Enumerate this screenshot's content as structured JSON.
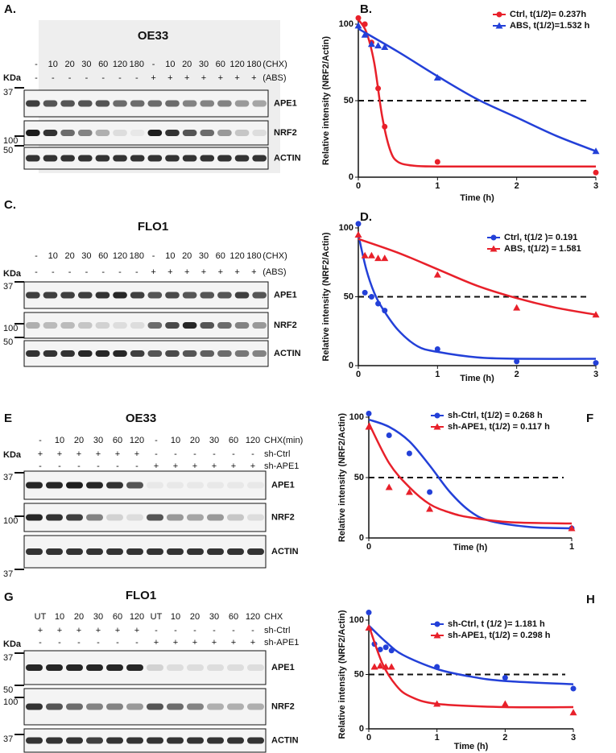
{
  "blots": [
    {
      "letter": "A.",
      "title": "OE33",
      "lane_rows": [
        {
          "cells": [
            "-",
            "10",
            "20",
            "30",
            "60",
            "120",
            "180",
            "-",
            "10",
            "20",
            "30",
            "60",
            "120",
            "180"
          ],
          "label": "(CHX)"
        },
        {
          "cells": [
            "-",
            "-",
            "-",
            "-",
            "-",
            "-",
            "-",
            "+",
            "+",
            "+",
            "+",
            "+",
            "+",
            "+"
          ],
          "label": "(ABS)"
        }
      ],
      "kda": "KDa",
      "strips": [
        "APE1",
        "NRF2",
        "ACTIN"
      ],
      "markers": [
        "37",
        "100",
        "50"
      ]
    },
    {
      "letter": "C.",
      "title": "FLO1",
      "lane_rows": [
        {
          "cells": [
            "-",
            "10",
            "20",
            "30",
            "60",
            "120",
            "180",
            "-",
            "10",
            "20",
            "30",
            "60",
            "120",
            "180"
          ],
          "label": "(CHX)"
        },
        {
          "cells": [
            "-",
            "-",
            "-",
            "-",
            "-",
            "-",
            "-",
            "+",
            "+",
            "+",
            "+",
            "+",
            "+",
            "+"
          ],
          "label": "(ABS)"
        }
      ],
      "kda": "KDa",
      "strips": [
        "APE1",
        "NRF2",
        "ACTIN"
      ],
      "markers": [
        "37",
        "100",
        "50"
      ]
    },
    {
      "letter": "E",
      "title": "OE33",
      "lane_rows": [
        {
          "cells": [
            "-",
            "10",
            "20",
            "30",
            "60",
            "120",
            "-",
            "10",
            "20",
            "30",
            "60",
            "120"
          ],
          "label": "CHX(min)"
        },
        {
          "cells": [
            "+",
            "+",
            "+",
            "+",
            "+",
            "+",
            "-",
            "-",
            "-",
            "-",
            "-",
            "-"
          ],
          "label": "sh-Ctrl"
        },
        {
          "cells": [
            "-",
            "-",
            "-",
            "-",
            "-",
            "-",
            "+",
            "+",
            "+",
            "+",
            "+",
            "+"
          ],
          "label": "sh-APE1"
        }
      ],
      "kda": "KDa",
      "strips": [
        "APE1",
        "NRF2",
        "ACTIN"
      ],
      "markers": [
        "37",
        "100",
        "37"
      ]
    },
    {
      "letter": "G",
      "title": "FLO1",
      "lane_rows": [
        {
          "cells": [
            "UT",
            "10",
            "20",
            "30",
            "60",
            "120",
            "UT",
            "10",
            "20",
            "30",
            "60",
            "120"
          ],
          "label": "CHX"
        },
        {
          "cells": [
            "+",
            "+",
            "+",
            "+",
            "+",
            "+",
            "-",
            "-",
            "-",
            "-",
            "-",
            "-"
          ],
          "label": "sh-Ctrl"
        },
        {
          "cells": [
            "-",
            "-",
            "-",
            "-",
            "-",
            "-",
            "+",
            "+",
            "+",
            "+",
            "+",
            "+"
          ],
          "label": "sh-APE1"
        }
      ],
      "kda": "KDa",
      "strips": [
        "APE1",
        "NRF2",
        "ACTIN"
      ],
      "markers": [
        "37",
        "50",
        "100",
        "37"
      ]
    }
  ],
  "chart_data": [
    {
      "letter": "B.",
      "type": "line",
      "y_label": "Relative intensity (NRF2/Actin)",
      "x_label": "Time (h)",
      "legend": "upper right",
      "hline": 50,
      "x": [
        0,
        0.083,
        0.167,
        0.25,
        0.333,
        1,
        3
      ],
      "xlim": [
        0,
        3
      ],
      "xticks": [
        0,
        1,
        2,
        3
      ],
      "ylim": [
        0,
        100
      ],
      "yticks": [
        0,
        50,
        100
      ],
      "series": [
        {
          "name": "Ctrl, t(1/2)= 0.237h",
          "color": "#e8202a",
          "marker": "circle",
          "values": [
            104,
            100,
            88,
            58,
            33,
            10,
            3
          ],
          "fit": {
            "x": [
              0,
              0.1,
              0.2,
              0.3,
              0.4,
              0.5,
              0.7,
              1,
              2,
              3
            ],
            "values": [
              103,
              95,
              75,
              40,
              18,
              10,
              7.5,
              7,
              7,
              7
            ]
          }
        },
        {
          "name": "ABS, t(1/2)=1.532 h",
          "color": "#2340d8",
          "marker": "triangle",
          "values": [
            99,
            93,
            87,
            86,
            85,
            65,
            17
          ],
          "fit": {
            "x": [
              0,
              0.5,
              1,
              1.5,
              2,
              2.5,
              3
            ],
            "values": [
              97,
              82,
              66,
              51,
              39,
              27,
              17
            ]
          }
        }
      ]
    },
    {
      "letter": "D.",
      "type": "line",
      "y_label": "Relative intensity (NRF2/Actin)",
      "x_label": "Time (h)",
      "legend": "upper right",
      "hline": 50,
      "x": [
        0,
        0.083,
        0.167,
        0.25,
        0.333,
        1,
        2,
        3
      ],
      "xlim": [
        0,
        3
      ],
      "xticks": [
        0,
        1,
        2,
        3
      ],
      "ylim": [
        0,
        100
      ],
      "yticks": [
        0,
        50,
        100
      ],
      "series": [
        {
          "name": "Ctrl, t(1/2 )=   0.191",
          "color": "#2340d8",
          "marker": "circle",
          "values": [
            103,
            53,
            50,
            45,
            40,
            12,
            3,
            2
          ],
          "fit": {
            "x": [
              0,
              0.1,
              0.2,
              0.3,
              0.5,
              0.75,
              1,
              1.5,
              2,
              3
            ],
            "values": [
              95,
              70,
              53,
              42,
              26,
              14,
              10,
              6,
              5,
              5
            ]
          }
        },
        {
          "name": "ABS, t(1/2) =   1.581",
          "color": "#e8202a",
          "marker": "triangle",
          "values": [
            95,
            80,
            80,
            78,
            78,
            66,
            42,
            37
          ],
          "fit": {
            "x": [
              0,
              0.5,
              1,
              1.5,
              2,
              2.5,
              3
            ],
            "values": [
              92,
              82,
              70,
              58,
              49,
              42,
              37
            ]
          }
        }
      ]
    },
    {
      "letter": "F",
      "type": "line",
      "y_label": "Relative intensity (NRF2/Actin)",
      "x_label": "Time (h)",
      "legend": "upper right",
      "hline": 50,
      "x": [
        0,
        0.1,
        0.2,
        0.3,
        1
      ],
      "xlim": [
        0,
        1
      ],
      "xticks": [
        0,
        1
      ],
      "ylim": [
        0,
        100
      ],
      "yticks": [
        0,
        50,
        100
      ],
      "series": [
        {
          "name": "sh-Ctrl, t(1/2) = 0.268 h",
          "color": "#2340d8",
          "marker": "circle",
          "values": [
            103,
            85,
            70,
            38,
            8
          ],
          "fit": {
            "x": [
              0,
              0.1,
              0.2,
              0.3,
              0.4,
              0.5,
              0.6,
              0.8,
              1
            ],
            "values": [
              98,
              92,
              80,
              60,
              38,
              22,
              14,
              9,
              8
            ]
          }
        },
        {
          "name": "sh-APE1, t(1/2) = 0.117 h",
          "color": "#e8202a",
          "marker": "triangle",
          "values": [
            92,
            42,
            38,
            24,
            8
          ],
          "fit": {
            "x": [
              0,
              0.1,
              0.2,
              0.3,
              0.4,
              0.5,
              0.7,
              1
            ],
            "values": [
              95,
              62,
              42,
              28,
              21,
              17,
              13,
              12
            ]
          }
        }
      ]
    },
    {
      "letter": "H",
      "type": "line",
      "y_label": "Relative intensity (NRF2/Actin)",
      "x_label": "Time (h)",
      "legend": "upper right",
      "hline": 50,
      "x": [
        0,
        0.083,
        0.167,
        0.25,
        0.333,
        1,
        2,
        3
      ],
      "xlim": [
        0,
        3
      ],
      "xticks": [
        0,
        1,
        2,
        3
      ],
      "ylim": [
        0,
        100
      ],
      "yticks": [
        0,
        50,
        100
      ],
      "series": [
        {
          "name": "sh-Ctrl, t (1/2 )= 1.181 h",
          "color": "#2340d8",
          "marker": "circle",
          "values": [
            107,
            78,
            73,
            75,
            72,
            57,
            47,
            37
          ],
          "fit": {
            "x": [
              0,
              0.25,
              0.5,
              1,
              1.5,
              2,
              3
            ],
            "values": [
              95,
              80,
              68,
              55,
              48,
              44,
              41
            ]
          }
        },
        {
          "name": "sh-APE1, t(1/2) = 0.298 h",
          "color": "#e8202a",
          "marker": "triangle",
          "values": [
            93,
            57,
            58,
            57,
            57,
            23,
            23,
            15
          ],
          "fit": {
            "x": [
              0,
              0.2,
              0.4,
              0.6,
              1,
              2,
              3
            ],
            "values": [
              95,
              60,
              40,
              30,
              23,
              20,
              20
            ]
          }
        }
      ]
    }
  ]
}
